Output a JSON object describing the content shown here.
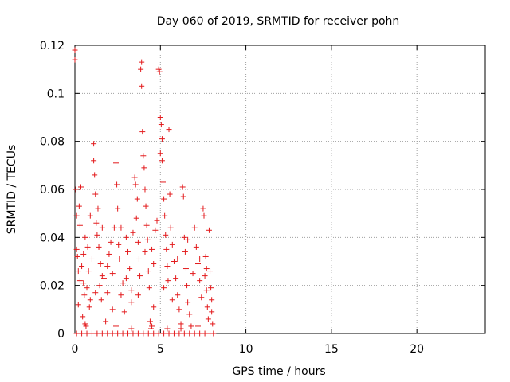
{
  "chart_data": {
    "type": "scatter",
    "title": "Day 060 of 2019, SRMTID for receiver pohn",
    "xlabel": "GPS time / hours",
    "ylabel": "SRMTID / TECUs",
    "xlim": [
      0,
      24
    ],
    "ylim": [
      0,
      0.12
    ],
    "xticks": [
      0,
      5,
      10,
      15,
      20
    ],
    "yticks": [
      0,
      0.02,
      0.04,
      0.06,
      0.08,
      0.1,
      0.12
    ],
    "ytick_labels": [
      "0",
      "0.02",
      "0.04",
      "0.06",
      "0.08",
      "0.1",
      "0.12"
    ],
    "grid": true,
    "marker": "+",
    "color": "#e31a1c",
    "series": [
      {
        "points": [
          [
            0.0,
            0.118
          ],
          [
            0.0,
            0.114
          ],
          [
            0.05,
            0.06
          ],
          [
            0.1,
            0.049
          ],
          [
            0.1,
            0.035
          ],
          [
            0.15,
            0.032
          ],
          [
            0.2,
            0.012
          ],
          [
            0.25,
            0.053
          ],
          [
            0.3,
            0.045
          ],
          [
            0.3,
            0.022
          ],
          [
            0.35,
            0.061
          ],
          [
            0.4,
            0.028
          ],
          [
            0.45,
            0.007
          ],
          [
            0.5,
            0.033
          ],
          [
            0.55,
            0.016
          ],
          [
            0.6,
            0.04
          ],
          [
            0.65,
            0.003
          ],
          [
            0.7,
            0.019
          ],
          [
            0.75,
            0.036
          ],
          [
            0.8,
            0.026
          ],
          [
            0.85,
            0.011
          ],
          [
            0.9,
            0.049
          ],
          [
            1.0,
            0.031
          ],
          [
            1.1,
            0.079
          ],
          [
            1.1,
            0.072
          ],
          [
            1.15,
            0.066
          ],
          [
            1.2,
            0.058
          ],
          [
            1.25,
            0.046
          ],
          [
            1.3,
            0.041
          ],
          [
            1.35,
            0.052
          ],
          [
            1.4,
            0.036
          ],
          [
            1.45,
            0.02
          ],
          [
            1.5,
            0.029
          ],
          [
            1.55,
            0.014
          ],
          [
            1.6,
            0.044
          ],
          [
            1.7,
            0.023
          ],
          [
            1.8,
            0.005
          ],
          [
            1.9,
            0.017
          ],
          [
            2.0,
            0.033
          ],
          [
            2.1,
            0.038
          ],
          [
            2.2,
            0.025
          ],
          [
            2.3,
            0.044
          ],
          [
            2.4,
            0.071
          ],
          [
            2.45,
            0.062
          ],
          [
            2.5,
            0.052
          ],
          [
            2.55,
            0.037
          ],
          [
            2.6,
            0.031
          ],
          [
            2.7,
            0.016
          ],
          [
            2.8,
            0.021
          ],
          [
            2.9,
            0.009
          ],
          [
            3.0,
            0.04
          ],
          [
            3.1,
            0.034
          ],
          [
            3.2,
            0.027
          ],
          [
            3.3,
            0.013
          ],
          [
            3.4,
            0.042
          ],
          [
            3.5,
            0.065
          ],
          [
            3.55,
            0.062
          ],
          [
            3.6,
            0.048
          ],
          [
            3.65,
            0.056
          ],
          [
            3.7,
            0.038
          ],
          [
            3.75,
            0.031
          ],
          [
            3.8,
            0.024
          ],
          [
            3.85,
            0.11
          ],
          [
            3.9,
            0.113
          ],
          [
            3.9,
            0.103
          ],
          [
            3.95,
            0.084
          ],
          [
            4.0,
            0.074
          ],
          [
            4.05,
            0.069
          ],
          [
            4.1,
            0.06
          ],
          [
            4.15,
            0.053
          ],
          [
            4.2,
            0.045
          ],
          [
            4.25,
            0.039
          ],
          [
            4.3,
            0.026
          ],
          [
            4.35,
            0.019
          ],
          [
            4.4,
            0.005
          ],
          [
            4.45,
            0.002
          ],
          [
            4.5,
            0.035
          ],
          [
            4.6,
            0.029
          ],
          [
            4.7,
            0.043
          ],
          [
            4.8,
            0.047
          ],
          [
            4.9,
            0.11
          ],
          [
            4.95,
            0.109
          ],
          [
            5.0,
            0.09
          ],
          [
            5.05,
            0.087
          ],
          [
            5.1,
            0.081
          ],
          [
            5.0,
            0.075
          ],
          [
            5.1,
            0.072
          ],
          [
            5.15,
            0.063
          ],
          [
            5.2,
            0.056
          ],
          [
            5.25,
            0.049
          ],
          [
            5.3,
            0.041
          ],
          [
            5.35,
            0.035
          ],
          [
            5.4,
            0.028
          ],
          [
            5.45,
            0.022
          ],
          [
            5.5,
            0.085
          ],
          [
            5.55,
            0.058
          ],
          [
            5.6,
            0.044
          ],
          [
            5.7,
            0.037
          ],
          [
            5.8,
            0.03
          ],
          [
            5.9,
            0.023
          ],
          [
            6.0,
            0.016
          ],
          [
            6.1,
            0.01
          ],
          [
            6.2,
            0.004
          ],
          [
            6.3,
            0.061
          ],
          [
            6.35,
            0.057
          ],
          [
            6.4,
            0.04
          ],
          [
            6.45,
            0.034
          ],
          [
            6.5,
            0.027
          ],
          [
            6.55,
            0.02
          ],
          [
            6.6,
            0.013
          ],
          [
            6.7,
            0.008
          ],
          [
            6.8,
            0.003
          ],
          [
            7.0,
            0.044
          ],
          [
            7.1,
            0.036
          ],
          [
            7.2,
            0.029
          ],
          [
            7.3,
            0.022
          ],
          [
            7.4,
            0.015
          ],
          [
            7.5,
            0.052
          ],
          [
            7.55,
            0.049
          ],
          [
            7.6,
            0.024
          ],
          [
            7.65,
            0.032
          ],
          [
            7.7,
            0.018
          ],
          [
            7.75,
            0.011
          ],
          [
            7.8,
            0.006
          ],
          [
            7.85,
            0.043
          ],
          [
            7.9,
            0.026
          ],
          [
            7.95,
            0.019
          ],
          [
            8.0,
            0.014
          ],
          [
            8.0,
            0.009
          ],
          [
            8.05,
            0.004
          ],
          [
            0.5,
            0.021
          ],
          [
            1.2,
            0.017
          ],
          [
            1.9,
            0.028
          ],
          [
            2.7,
            0.044
          ],
          [
            3.3,
            0.018
          ],
          [
            4.1,
            0.034
          ],
          [
            5.2,
            0.019
          ],
          [
            6.0,
            0.031
          ],
          [
            6.9,
            0.025
          ],
          [
            7.3,
            0.031
          ],
          [
            0.2,
            0.026
          ],
          [
            0.9,
            0.014
          ],
          [
            1.6,
            0.024
          ],
          [
            2.2,
            0.01
          ],
          [
            3.0,
            0.023
          ],
          [
            3.7,
            0.016
          ],
          [
            4.6,
            0.011
          ],
          [
            5.7,
            0.014
          ],
          [
            6.6,
            0.039
          ],
          [
            7.7,
            0.027
          ],
          [
            0.1,
            0.0
          ],
          [
            0.4,
            0.0
          ],
          [
            0.7,
            0.0
          ],
          [
            1.0,
            0.0
          ],
          [
            1.3,
            0.0
          ],
          [
            1.6,
            0.0
          ],
          [
            1.9,
            0.0
          ],
          [
            2.2,
            0.0
          ],
          [
            2.5,
            0.0
          ],
          [
            2.8,
            0.0
          ],
          [
            3.1,
            0.0
          ],
          [
            3.4,
            0.0
          ],
          [
            3.7,
            0.0
          ],
          [
            4.0,
            0.0
          ],
          [
            4.3,
            0.0
          ],
          [
            4.6,
            0.0
          ],
          [
            4.9,
            0.0
          ],
          [
            5.2,
            0.0
          ],
          [
            5.5,
            0.0
          ],
          [
            5.8,
            0.0
          ],
          [
            6.1,
            0.0
          ],
          [
            6.4,
            0.0
          ],
          [
            6.7,
            0.0
          ],
          [
            7.0,
            0.0
          ],
          [
            7.3,
            0.0
          ],
          [
            7.6,
            0.0
          ],
          [
            7.9,
            0.0
          ],
          [
            8.1,
            0.0
          ],
          [
            3.3,
            0.002
          ],
          [
            4.5,
            0.003
          ],
          [
            2.4,
            0.003
          ],
          [
            6.2,
            0.002
          ],
          [
            0.6,
            0.004
          ],
          [
            5.4,
            0.002
          ],
          [
            7.2,
            0.003
          ]
        ]
      }
    ]
  }
}
